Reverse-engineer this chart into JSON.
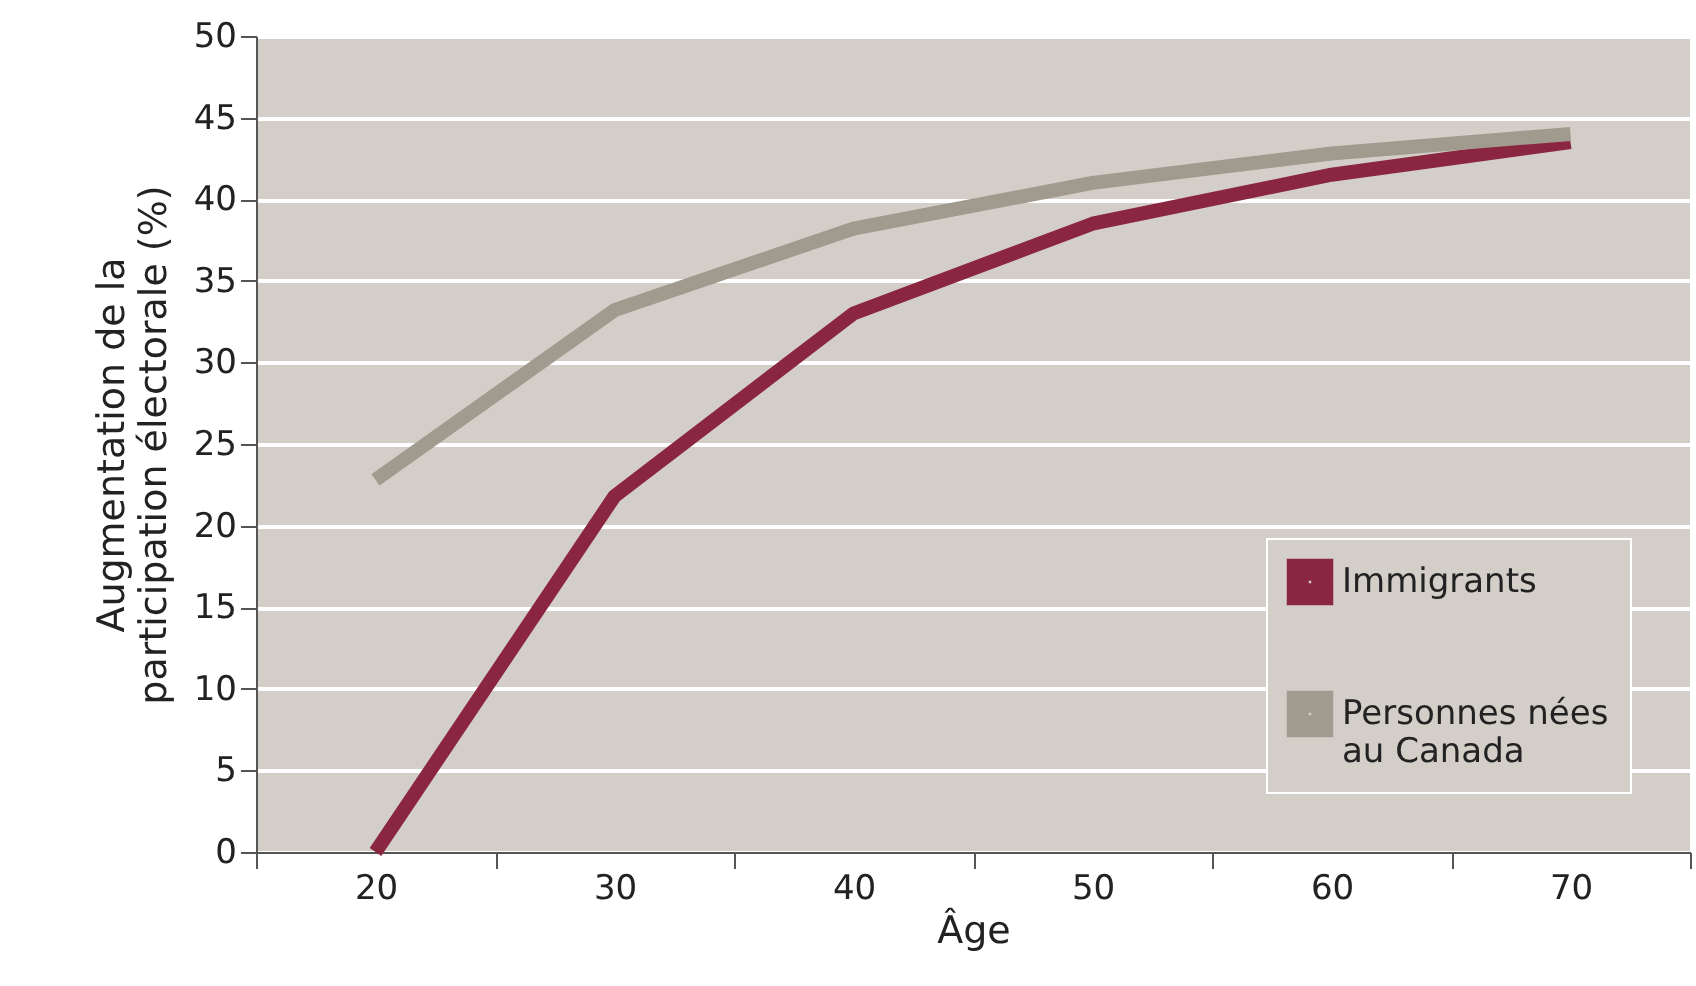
{
  "chart_data": {
    "type": "line",
    "xlabel": "Âge",
    "ylabel": "Augmentation de la participation électorale (%)",
    "categories": [
      "20",
      "30",
      "40",
      "50",
      "60",
      "70"
    ],
    "ylim": [
      0,
      50
    ],
    "yticks": [
      0,
      5,
      10,
      15,
      20,
      25,
      30,
      35,
      40,
      45,
      50
    ],
    "grid": "y",
    "legend": "bottom right",
    "series": [
      {
        "name": "Immigrants",
        "color": "#8b2641",
        "values": [
          0,
          21.8,
          33.0,
          38.5,
          41.5,
          43.5
        ]
      },
      {
        "name": "Personnes nées au Canada",
        "color": "#a09a8f",
        "values": [
          22.8,
          33.2,
          38.2,
          41.0,
          42.8,
          44.0
        ]
      }
    ]
  }
}
